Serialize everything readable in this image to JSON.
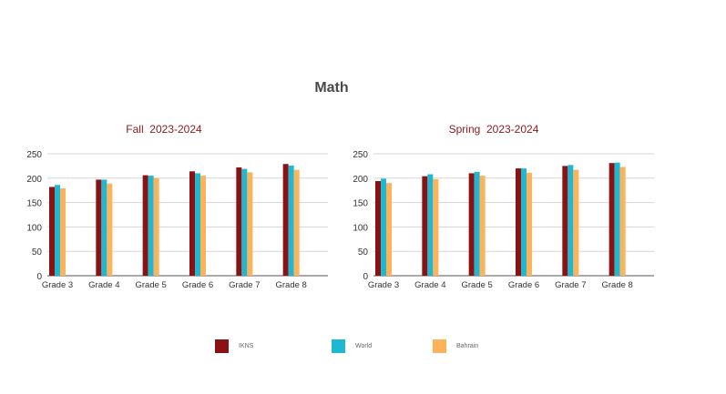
{
  "title": "Math",
  "colors": {
    "IKNS": "#8b1212",
    "World": "#1fb8d3",
    "Bahrain": "#fdb35a"
  },
  "legend": [
    "IKNS",
    "World",
    "Bahrain"
  ],
  "chart_data": [
    {
      "type": "bar",
      "title": "Fall  2023-2024",
      "categories": [
        "Grade 3",
        "Grade 4",
        "Grade 5",
        "Grade 6",
        "Grade 7",
        "Grade 8"
      ],
      "ylim": [
        0,
        250
      ],
      "yticks": [
        0,
        50,
        100,
        150,
        200,
        250
      ],
      "grid": true,
      "legend_position": "bottom",
      "series": [
        {
          "name": "IKNS",
          "values": [
            182,
            197,
            206,
            214,
            222,
            229
          ]
        },
        {
          "name": "World",
          "values": [
            186,
            197,
            205,
            210,
            219,
            226
          ]
        },
        {
          "name": "Bahrain",
          "values": [
            179,
            189,
            200,
            205,
            212,
            217
          ]
        }
      ]
    },
    {
      "type": "bar",
      "title": "Spring  2023-2024",
      "categories": [
        "Grade 3",
        "Grade 4",
        "Grade 5",
        "Grade 6",
        "Grade 7",
        "Grade 8"
      ],
      "ylim": [
        0,
        250
      ],
      "yticks": [
        0,
        50,
        100,
        150,
        200,
        250
      ],
      "grid": true,
      "legend_position": "bottom",
      "series": [
        {
          "name": "IKNS",
          "values": [
            194,
            204,
            210,
            220,
            225,
            231
          ]
        },
        {
          "name": "World",
          "values": [
            199,
            208,
            213,
            220,
            227,
            232
          ]
        },
        {
          "name": "Bahrain",
          "values": [
            190,
            198,
            205,
            211,
            217,
            223
          ]
        }
      ]
    }
  ]
}
